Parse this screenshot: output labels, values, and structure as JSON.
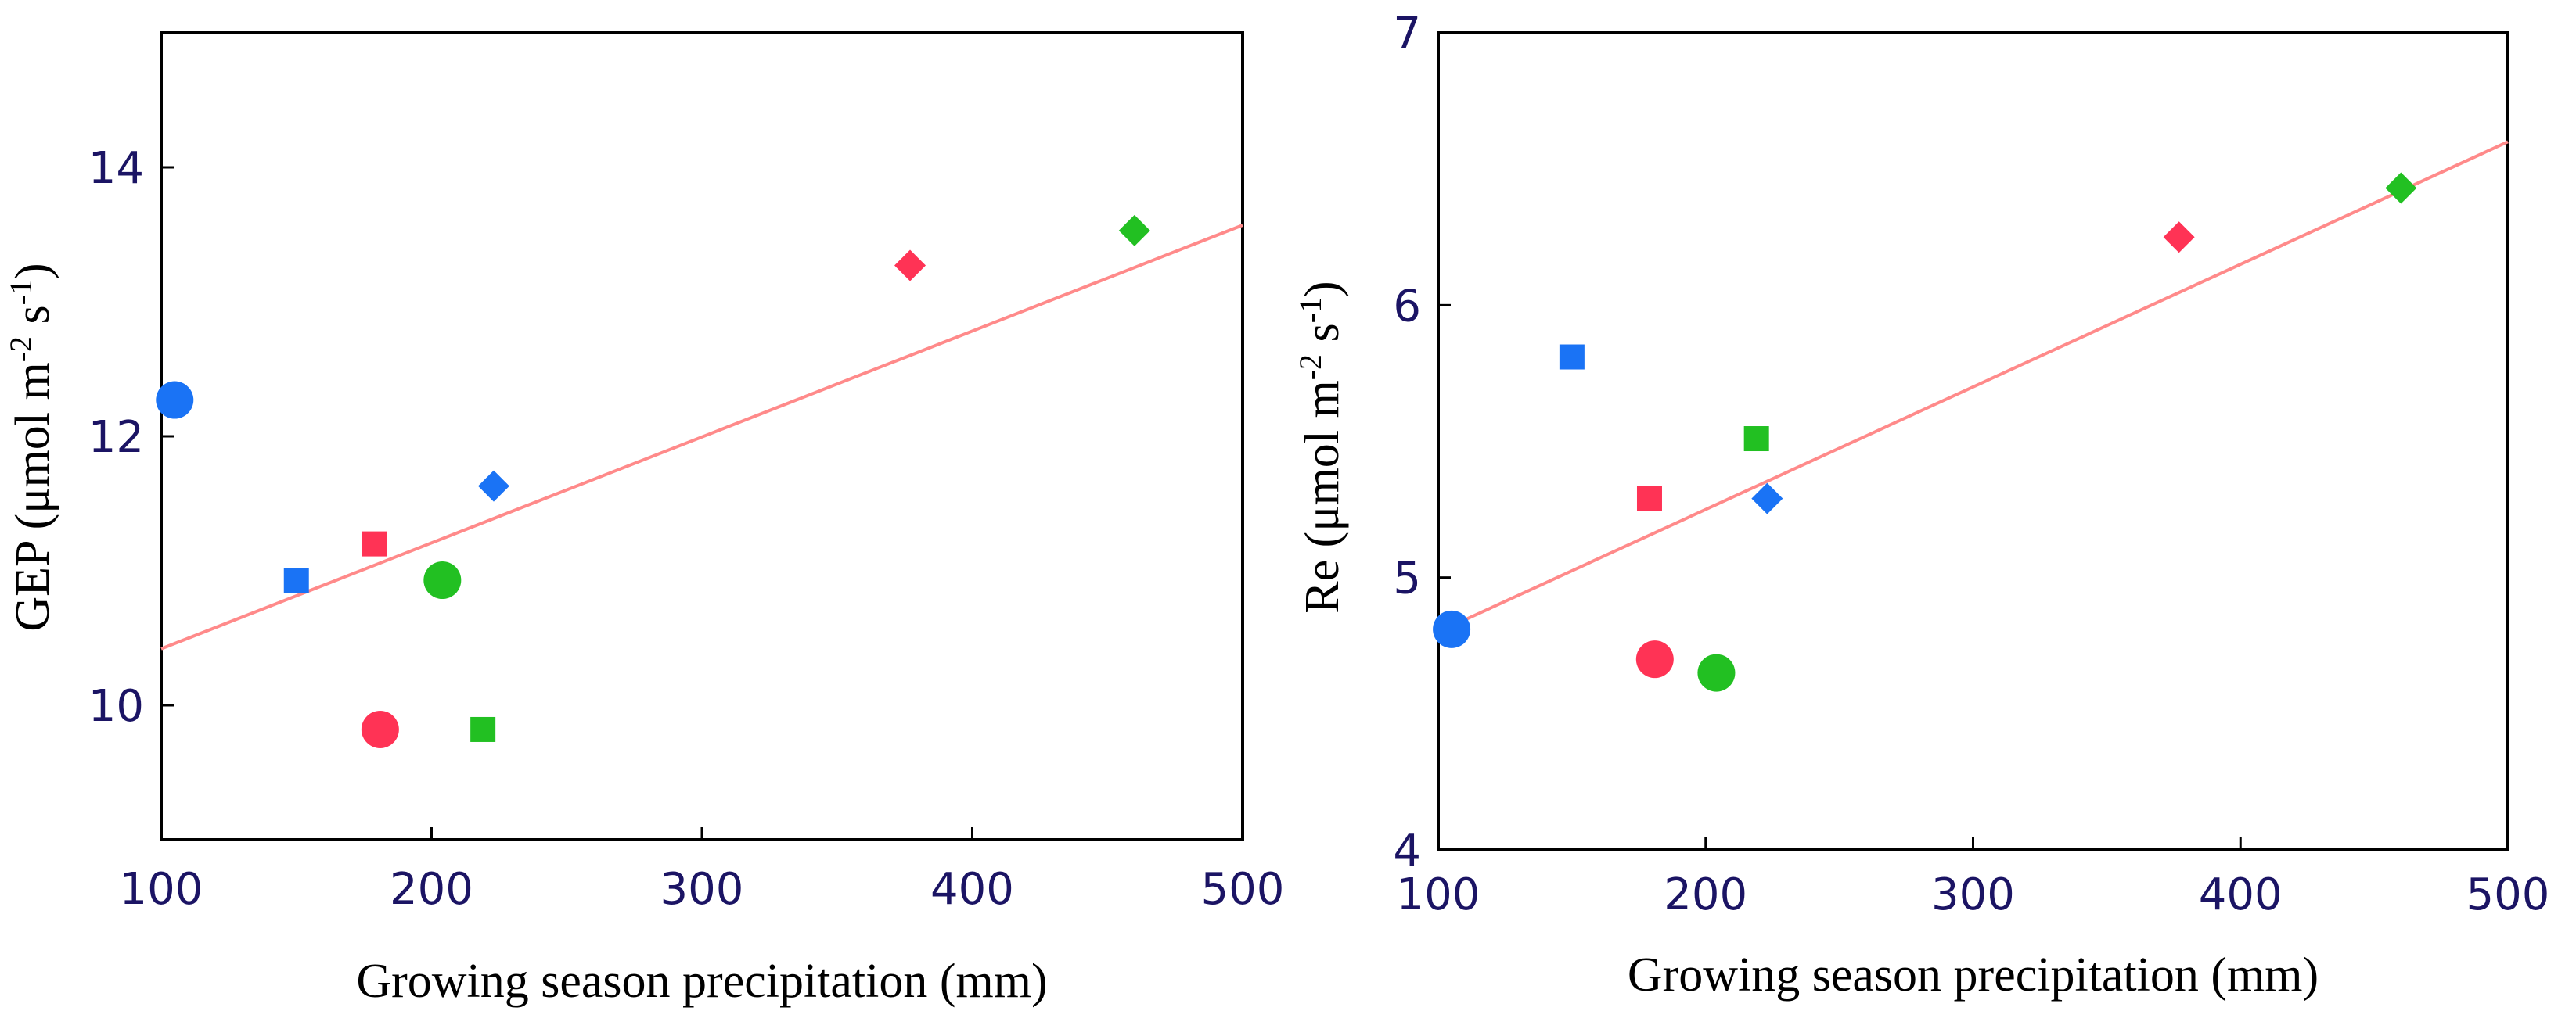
{
  "colors": {
    "red": "#ff3355",
    "blue": "#1a73f5",
    "green": "#22c022",
    "fit": "#ff8a8a",
    "axis": "#000000",
    "tick_text": "#1b1464"
  },
  "chart_data": [
    {
      "type": "scatter",
      "ylabel_main": "GEP (μmol m",
      "ylabel_exp1": "-2",
      "ylabel_mid": " s",
      "ylabel_exp2": "-1",
      "ylabel_end": ")",
      "xlabel": "Growing season precipitation (mm)",
      "xlim": [
        100,
        500
      ],
      "ylim": [
        9,
        15
      ],
      "xticks": [
        100,
        200,
        300,
        400,
        500
      ],
      "yticks": [
        10,
        12,
        14
      ],
      "xtick_labels": [
        "100",
        "200",
        "300",
        "400",
        "500"
      ],
      "ytick_labels": [
        "10",
        "12",
        "14"
      ],
      "fit_line": {
        "x": [
          100,
          500
        ],
        "y": [
          10.42,
          13.57
        ]
      },
      "points": [
        {
          "x": 105,
          "y": 12.27,
          "marker": "circle",
          "color": "blue"
        },
        {
          "x": 150,
          "y": 10.93,
          "marker": "square",
          "color": "blue"
        },
        {
          "x": 179,
          "y": 11.2,
          "marker": "square",
          "color": "red"
        },
        {
          "x": 181,
          "y": 9.82,
          "marker": "circle",
          "color": "red"
        },
        {
          "x": 204,
          "y": 10.93,
          "marker": "circle",
          "color": "green"
        },
        {
          "x": 219,
          "y": 9.82,
          "marker": "square",
          "color": "green"
        },
        {
          "x": 223,
          "y": 11.63,
          "marker": "diamond",
          "color": "blue"
        },
        {
          "x": 377,
          "y": 13.27,
          "marker": "diamond",
          "color": "red"
        },
        {
          "x": 460,
          "y": 13.53,
          "marker": "diamond",
          "color": "green"
        }
      ]
    },
    {
      "type": "scatter",
      "ylabel_main": "Re (μmol m",
      "ylabel_exp1": "-2",
      "ylabel_mid": " s",
      "ylabel_exp2": "-1",
      "ylabel_end": ")",
      "xlabel": "Growing season precipitation (mm)",
      "xlim": [
        100,
        500
      ],
      "ylim": [
        4,
        7
      ],
      "xticks": [
        100,
        200,
        300,
        400,
        500
      ],
      "yticks": [
        4,
        5,
        6,
        7
      ],
      "xtick_labels": [
        "100",
        "200",
        "300",
        "400",
        "500"
      ],
      "ytick_labels": [
        "4",
        "5",
        "6",
        "7"
      ],
      "fit_line": {
        "x": [
          100,
          500
        ],
        "y": [
          4.8,
          6.6
        ]
      },
      "points": [
        {
          "x": 105,
          "y": 4.81,
          "marker": "circle",
          "color": "blue"
        },
        {
          "x": 150,
          "y": 5.81,
          "marker": "square",
          "color": "blue"
        },
        {
          "x": 179,
          "y": 5.29,
          "marker": "square",
          "color": "red"
        },
        {
          "x": 181,
          "y": 4.7,
          "marker": "circle",
          "color": "red"
        },
        {
          "x": 204,
          "y": 4.65,
          "marker": "circle",
          "color": "green"
        },
        {
          "x": 219,
          "y": 5.51,
          "marker": "square",
          "color": "green"
        },
        {
          "x": 223,
          "y": 5.29,
          "marker": "diamond",
          "color": "blue"
        },
        {
          "x": 377,
          "y": 6.25,
          "marker": "diamond",
          "color": "red"
        },
        {
          "x": 460,
          "y": 6.43,
          "marker": "diamond",
          "color": "green"
        }
      ]
    }
  ]
}
